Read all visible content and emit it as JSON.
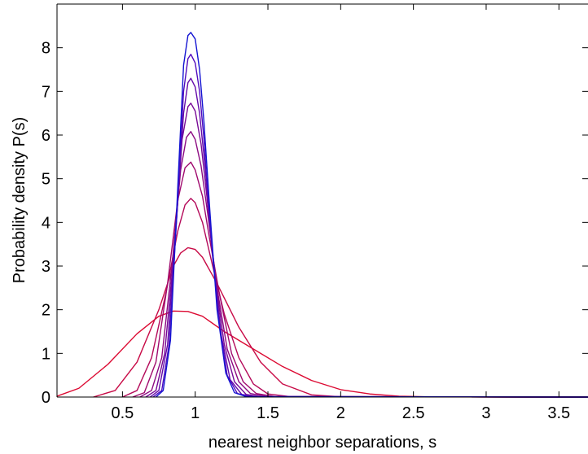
{
  "chart_data": {
    "type": "line",
    "title": "",
    "xlabel": "nearest neighbor separations, s",
    "ylabel": "Probability density P(s)",
    "xlim": [
      0.05,
      3.7
    ],
    "ylim": [
      0,
      9
    ],
    "xticks": [
      0.5,
      1,
      1.5,
      2,
      2.5,
      3,
      3.5
    ],
    "yticks": [
      0,
      1,
      2,
      3,
      4,
      5,
      6,
      7,
      8
    ],
    "grid": false,
    "legend": "none",
    "series": [
      {
        "color": "#dc0a32",
        "points": [
          [
            0.05,
            0.02
          ],
          [
            0.2,
            0.2
          ],
          [
            0.4,
            0.75
          ],
          [
            0.6,
            1.45
          ],
          [
            0.75,
            1.85
          ],
          [
            0.85,
            1.97
          ],
          [
            0.95,
            1.96
          ],
          [
            1.05,
            1.85
          ],
          [
            1.2,
            1.5
          ],
          [
            1.4,
            1.1
          ],
          [
            1.6,
            0.7
          ],
          [
            1.8,
            0.38
          ],
          [
            2.0,
            0.17
          ],
          [
            2.2,
            0.07
          ],
          [
            2.4,
            0.02
          ],
          [
            2.6,
            0.005
          ],
          [
            3.7,
            0
          ]
        ]
      },
      {
        "color": "#c80a46",
        "points": [
          [
            0.3,
            0
          ],
          [
            0.45,
            0.15
          ],
          [
            0.6,
            0.8
          ],
          [
            0.75,
            2.0
          ],
          [
            0.85,
            3.0
          ],
          [
            0.9,
            3.3
          ],
          [
            0.95,
            3.42
          ],
          [
            1.0,
            3.38
          ],
          [
            1.05,
            3.2
          ],
          [
            1.15,
            2.6
          ],
          [
            1.3,
            1.6
          ],
          [
            1.45,
            0.8
          ],
          [
            1.6,
            0.3
          ],
          [
            1.8,
            0.05
          ],
          [
            2.0,
            0.005
          ],
          [
            3.7,
            0
          ]
        ]
      },
      {
        "color": "#b40a5a",
        "points": [
          [
            0.5,
            0
          ],
          [
            0.6,
            0.15
          ],
          [
            0.7,
            0.9
          ],
          [
            0.8,
            2.4
          ],
          [
            0.88,
            3.8
          ],
          [
            0.93,
            4.4
          ],
          [
            0.97,
            4.55
          ],
          [
            1.0,
            4.45
          ],
          [
            1.05,
            4.0
          ],
          [
            1.12,
            3.0
          ],
          [
            1.2,
            1.9
          ],
          [
            1.3,
            0.9
          ],
          [
            1.4,
            0.3
          ],
          [
            1.5,
            0.07
          ],
          [
            1.65,
            0.01
          ],
          [
            3.7,
            0
          ]
        ]
      },
      {
        "color": "#a00a6e",
        "points": [
          [
            0.57,
            0
          ],
          [
            0.65,
            0.1
          ],
          [
            0.73,
            0.8
          ],
          [
            0.81,
            2.6
          ],
          [
            0.88,
            4.5
          ],
          [
            0.93,
            5.25
          ],
          [
            0.97,
            5.38
          ],
          [
            1.0,
            5.2
          ],
          [
            1.05,
            4.6
          ],
          [
            1.1,
            3.6
          ],
          [
            1.17,
            2.3
          ],
          [
            1.25,
            1.0
          ],
          [
            1.33,
            0.35
          ],
          [
            1.42,
            0.08
          ],
          [
            1.55,
            0.01
          ],
          [
            3.7,
            0
          ]
        ]
      },
      {
        "color": "#8c0a82",
        "points": [
          [
            0.62,
            0
          ],
          [
            0.7,
            0.15
          ],
          [
            0.77,
            0.9
          ],
          [
            0.84,
            3.0
          ],
          [
            0.9,
            5.2
          ],
          [
            0.94,
            5.95
          ],
          [
            0.97,
            6.08
          ],
          [
            1.0,
            5.9
          ],
          [
            1.04,
            5.3
          ],
          [
            1.09,
            4.1
          ],
          [
            1.15,
            2.5
          ],
          [
            1.22,
            1.1
          ],
          [
            1.3,
            0.35
          ],
          [
            1.38,
            0.08
          ],
          [
            1.5,
            0.01
          ],
          [
            3.7,
            0
          ]
        ]
      },
      {
        "color": "#780a96",
        "points": [
          [
            0.66,
            0
          ],
          [
            0.73,
            0.15
          ],
          [
            0.79,
            1.0
          ],
          [
            0.86,
            3.5
          ],
          [
            0.91,
            5.9
          ],
          [
            0.95,
            6.65
          ],
          [
            0.97,
            6.73
          ],
          [
            1.0,
            6.55
          ],
          [
            1.04,
            5.8
          ],
          [
            1.08,
            4.6
          ],
          [
            1.13,
            2.9
          ],
          [
            1.2,
            1.2
          ],
          [
            1.27,
            0.35
          ],
          [
            1.35,
            0.06
          ],
          [
            1.45,
            0.01
          ],
          [
            3.7,
            0
          ]
        ]
      },
      {
        "color": "#640aaa",
        "points": [
          [
            0.69,
            0
          ],
          [
            0.75,
            0.15
          ],
          [
            0.81,
            1.2
          ],
          [
            0.87,
            4.0
          ],
          [
            0.92,
            6.5
          ],
          [
            0.95,
            7.2
          ],
          [
            0.97,
            7.3
          ],
          [
            1.0,
            7.1
          ],
          [
            1.03,
            6.5
          ],
          [
            1.07,
            5.2
          ],
          [
            1.12,
            3.2
          ],
          [
            1.18,
            1.4
          ],
          [
            1.24,
            0.4
          ],
          [
            1.32,
            0.06
          ],
          [
            1.42,
            0.01
          ],
          [
            3.7,
            0
          ]
        ]
      },
      {
        "color": "#500abe",
        "points": [
          [
            0.71,
            0
          ],
          [
            0.77,
            0.15
          ],
          [
            0.82,
            1.2
          ],
          [
            0.88,
            4.5
          ],
          [
            0.92,
            7.0
          ],
          [
            0.95,
            7.75
          ],
          [
            0.97,
            7.85
          ],
          [
            1.0,
            7.65
          ],
          [
            1.03,
            7.0
          ],
          [
            1.06,
            5.9
          ],
          [
            1.1,
            4.0
          ],
          [
            1.16,
            1.8
          ],
          [
            1.22,
            0.5
          ],
          [
            1.29,
            0.08
          ],
          [
            1.38,
            0.01
          ],
          [
            3.7,
            0
          ]
        ]
      },
      {
        "color": "#1414d2",
        "points": [
          [
            0.73,
            0
          ],
          [
            0.78,
            0.15
          ],
          [
            0.83,
            1.3
          ],
          [
            0.88,
            4.8
          ],
          [
            0.92,
            7.6
          ],
          [
            0.95,
            8.28
          ],
          [
            0.97,
            8.35
          ],
          [
            1.0,
            8.2
          ],
          [
            1.03,
            7.5
          ],
          [
            1.06,
            6.3
          ],
          [
            1.1,
            4.3
          ],
          [
            1.15,
            2.0
          ],
          [
            1.21,
            0.55
          ],
          [
            1.27,
            0.1
          ],
          [
            1.35,
            0.01
          ],
          [
            3.7,
            0
          ]
        ]
      }
    ]
  }
}
